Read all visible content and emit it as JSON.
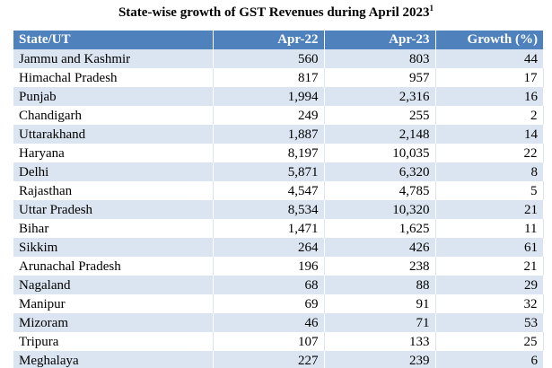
{
  "title": "State-wise growth of GST Revenues during April 2023",
  "title_footnote": "1",
  "table": {
    "headers": {
      "state": "State/UT",
      "apr22": "Apr-22",
      "apr23": "Apr-23",
      "growth": "Growth (%)"
    },
    "rows": [
      {
        "state": "Jammu and Kashmir",
        "apr22": "560",
        "apr23": "803",
        "growth": "44"
      },
      {
        "state": "Himachal Pradesh",
        "apr22": "817",
        "apr23": "957",
        "growth": "17"
      },
      {
        "state": "Punjab",
        "apr22": "1,994",
        "apr23": "2,316",
        "growth": "16"
      },
      {
        "state": "Chandigarh",
        "apr22": "249",
        "apr23": "255",
        "growth": "2"
      },
      {
        "state": "Uttarakhand",
        "apr22": "1,887",
        "apr23": "2,148",
        "growth": "14"
      },
      {
        "state": "Haryana",
        "apr22": "8,197",
        "apr23": "10,035",
        "growth": "22"
      },
      {
        "state": "Delhi",
        "apr22": "5,871",
        "apr23": "6,320",
        "growth": "8"
      },
      {
        "state": "Rajasthan",
        "apr22": "4,547",
        "apr23": "4,785",
        "growth": "5"
      },
      {
        "state": "Uttar Pradesh",
        "apr22": "8,534",
        "apr23": "10,320",
        "growth": "21"
      },
      {
        "state": "Bihar",
        "apr22": "1,471",
        "apr23": "1,625",
        "growth": "11"
      },
      {
        "state": "Sikkim",
        "apr22": "264",
        "apr23": "426",
        "growth": "61"
      },
      {
        "state": "Arunachal Pradesh",
        "apr22": "196",
        "apr23": "238",
        "growth": "21"
      },
      {
        "state": "Nagaland",
        "apr22": "68",
        "apr23": "88",
        "growth": "29"
      },
      {
        "state": "Manipur",
        "apr22": "69",
        "apr23": "91",
        "growth": "32"
      },
      {
        "state": "Mizoram",
        "apr22": "46",
        "apr23": "71",
        "growth": "53"
      },
      {
        "state": "Tripura",
        "apr22": "107",
        "apr23": "133",
        "growth": "25"
      },
      {
        "state": "Meghalaya",
        "apr22": "227",
        "apr23": "239",
        "growth": "6"
      }
    ]
  },
  "colors": {
    "header_bg": "#4f81bd",
    "header_text": "#ffffff",
    "row_shade": "#dbe5f1",
    "row_plain": "#ffffff"
  }
}
